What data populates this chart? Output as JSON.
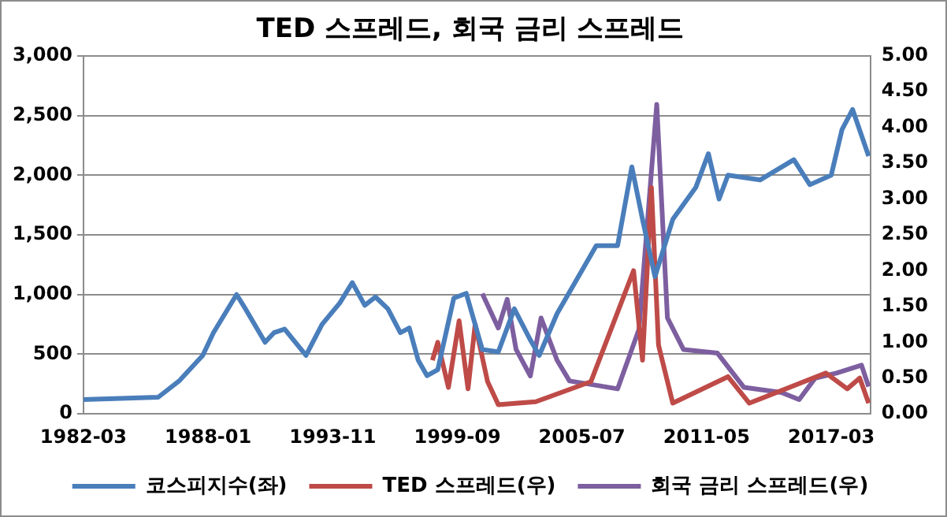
{
  "chart_data": {
    "type": "line",
    "title": "TED 스프레드, 회국 금리 스프레드",
    "xlim": [
      "1982-03",
      "2019-01"
    ],
    "xticks": [
      "1982-03",
      "1988-01",
      "1993-11",
      "1999-09",
      "2005-07",
      "2011-05",
      "2017-03"
    ],
    "ylim": [
      0,
      3000
    ],
    "yticks": [
      0,
      500,
      {
        "value": 1000,
        "label": "1,000"
      },
      {
        "value": 1500,
        "label": "1,500"
      },
      {
        "value": 2000,
        "label": "2,000"
      },
      {
        "value": 2500,
        "label": "2,500"
      },
      {
        "value": 3000,
        "label": "3,000"
      }
    ],
    "y2lim": [
      0,
      5
    ],
    "y2ticks": [
      {
        "value": 0,
        "label": "0.00"
      },
      {
        "value": 0.5,
        "label": "0.50"
      },
      {
        "value": 1,
        "label": "1.00"
      },
      {
        "value": 1.5,
        "label": "1.50"
      },
      {
        "value": 2,
        "label": "2.00"
      },
      {
        "value": 2.5,
        "label": "2.50"
      },
      {
        "value": 3,
        "label": "3.00"
      },
      {
        "value": 3.5,
        "label": "3.50"
      },
      {
        "value": 4,
        "label": "4.00"
      },
      {
        "value": 4.5,
        "label": "4.50"
      },
      {
        "value": 5,
        "label": "5.00"
      }
    ],
    "grid": "y",
    "legend": "bottom",
    "line_style": "solid",
    "marker": "none",
    "series": [
      {
        "name": "코스피지수(좌)",
        "color": "#4a7ebb",
        "x": [
          "1982-03",
          "1985-09",
          "1986-09",
          "1987-10",
          "1988-04",
          "1989-05",
          "1989-10",
          "1990-09",
          "1991-02",
          "1991-08",
          "1992-08",
          "1993-05",
          "1994-03",
          "1994-10",
          "1995-05",
          "1995-11",
          "1996-06",
          "1997-01",
          "1997-06",
          "1997-11",
          "1998-04",
          "1998-10",
          "1999-07",
          "2000-02",
          "2000-11",
          "2001-08",
          "2002-05",
          "2003-02",
          "2003-07",
          "2004-05",
          "2006-03",
          "2007-03",
          "2007-11",
          "2008-05",
          "2008-12",
          "2009-10",
          "2010-11",
          "2011-06",
          "2011-12",
          "2012-05",
          "2013-11",
          "2015-06",
          "2016-03",
          "2017-03",
          "2017-09",
          "2018-03",
          "2018-12"
        ],
        "values": [
          120,
          140,
          280,
          490,
          680,
          1000,
          880,
          600,
          680,
          710,
          490,
          750,
          930,
          1100,
          910,
          980,
          880,
          680,
          720,
          450,
          320,
          370,
          970,
          1010,
          540,
          520,
          880,
          620,
          490,
          840,
          1410,
          1410,
          2070,
          1630,
          1150,
          1630,
          1900,
          2180,
          1800,
          2000,
          1960,
          2130,
          1920,
          2000,
          2380,
          2550,
          2160
        ]
      },
      {
        "name": "TED 스프레드(우)",
        "color": "#be4b48",
        "axis": "y2",
        "x": [
          "1998-07",
          "1998-10",
          "1999-04",
          "1999-10",
          "2000-03",
          "2000-07",
          "2001-02",
          "2001-08",
          "2003-05",
          "2005-12",
          "2007-12",
          "2008-05",
          "2008-10",
          "2009-02",
          "2009-10",
          "2012-05",
          "2013-05",
          "2016-12",
          "2017-12",
          "2018-07",
          "2018-12"
        ],
        "values": [
          0.75,
          1.0,
          0.37,
          1.3,
          0.35,
          1.25,
          0.45,
          0.13,
          0.17,
          0.45,
          2.0,
          0.75,
          3.16,
          0.96,
          0.15,
          0.52,
          0.15,
          0.57,
          0.35,
          0.5,
          0.15
        ]
      },
      {
        "name": "회국 금리 스프레드(우)",
        "color": "#7d5fa0",
        "axis": "y2",
        "x": [
          "2000-11",
          "2001-08",
          "2002-01",
          "2002-06",
          "2003-02",
          "2003-08",
          "2004-05",
          "2004-12",
          "2006-03",
          "2007-03",
          "2008-03",
          "2009-01",
          "2009-07",
          "2010-04",
          "2011-11",
          "2013-02",
          "2014-11",
          "2015-09",
          "2016-06",
          "2017-06",
          "2018-08",
          "2018-12"
        ],
        "values": [
          1.68,
          1.2,
          1.6,
          0.9,
          0.53,
          1.34,
          0.75,
          0.46,
          0.4,
          0.35,
          1.18,
          4.32,
          1.34,
          0.9,
          0.85,
          0.37,
          0.3,
          0.2,
          0.5,
          0.57,
          0.68,
          0.38
        ]
      }
    ]
  }
}
